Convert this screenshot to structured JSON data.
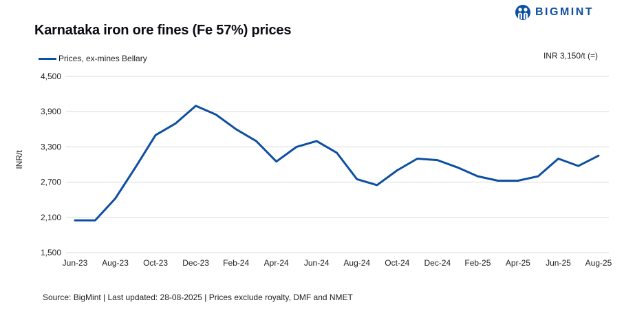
{
  "header": {
    "title": "Karnataka iron ore fines (Fe 57%) prices",
    "logo_text": "BIGMINT",
    "current_value": "INR 3,150/t (=)"
  },
  "legend": {
    "series_label": "Prices, ex-mines Bellary"
  },
  "axis": {
    "ylabel": "INR/t"
  },
  "footer": {
    "source": "Source: BigMint | Last updated: 28-08-2025 | Prices exclude royalty, DMF and NMET"
  },
  "colors": {
    "line": "#0d4fa0",
    "grid": "#d9d9d9",
    "brand": "#0d4fa0"
  },
  "chart_data": {
    "type": "line",
    "title": "Karnataka iron ore fines (Fe 57%) prices",
    "xlabel": "",
    "ylabel": "INR/t",
    "ylim": [
      1500,
      4500
    ],
    "yticks": [
      1500,
      2100,
      2700,
      3300,
      3900,
      4500
    ],
    "ytick_labels": [
      "1,500",
      "2,100",
      "2,700",
      "3,300",
      "3,900",
      "4,500"
    ],
    "xtick_labels": [
      "Jun-23",
      "Aug-23",
      "Oct-23",
      "Dec-23",
      "Feb-24",
      "Apr-24",
      "Jun-24",
      "Aug-24",
      "Oct-24",
      "Dec-24",
      "Feb-25",
      "Apr-25",
      "Jun-25",
      "Aug-25"
    ],
    "grid": "horizontal",
    "legend_position": "top-left",
    "categories": [
      "Jun-23",
      "Jul-23",
      "Aug-23",
      "Sep-23",
      "Oct-23",
      "Nov-23",
      "Dec-23",
      "Jan-24",
      "Feb-24",
      "Mar-24",
      "Apr-24",
      "May-24",
      "Jun-24",
      "Jul-24",
      "Aug-24",
      "Sep-24",
      "Oct-24",
      "Nov-24",
      "Dec-24",
      "Jan-25",
      "Feb-25",
      "Mar-25",
      "Apr-25",
      "May-25",
      "Jun-25",
      "Jul-25",
      "Aug-25"
    ],
    "series": [
      {
        "name": "Prices, ex-mines Bellary",
        "values": [
          2050,
          2050,
          2420,
          2950,
          3500,
          3700,
          4000,
          3850,
          3600,
          3400,
          3050,
          3300,
          3400,
          3200,
          2750,
          2650,
          2900,
          3100,
          3075,
          2950,
          2800,
          2725,
          2725,
          2800,
          3100,
          2975,
          3150
        ]
      }
    ],
    "annotation": "INR 3,150/t (=)"
  }
}
